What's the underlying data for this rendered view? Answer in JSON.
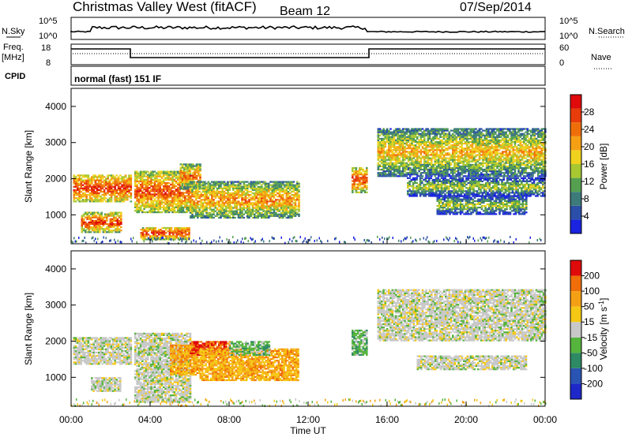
{
  "header": {
    "station": "Christmas Valley West (fitACF)",
    "beam": "Beam 12",
    "date": "07/Sep/2014"
  },
  "summary": {
    "nsky_label": "N.Sky",
    "nsky_ticks": [
      "10^5",
      "10^0"
    ],
    "nsearch_label": "N.Search",
    "nsearch_ticks": [
      "10^5",
      "10^0"
    ],
    "freq_label": "Freq.",
    "freq_unit": "[MHz]",
    "freq_ticks": [
      "18",
      "8"
    ],
    "nave_label": "Nave",
    "nave_ticks": [
      "60",
      "0"
    ],
    "cpid_label": "CPID",
    "cpid_value": "normal (fast) 151 IF"
  },
  "chart_data": [
    {
      "type": "heatmap",
      "name": "power-panel",
      "ylabel": "Slant Range [km]",
      "xlabel": "",
      "ylim": [
        200,
        4500
      ],
      "yticks": [
        "1000",
        "2000",
        "3000",
        "4000"
      ],
      "xlim_hours": [
        0,
        24
      ],
      "colorbar": {
        "label": "Power [dB]",
        "ticks": [
          "4",
          "8",
          "12",
          "16",
          "20",
          "24",
          "28"
        ],
        "colors": [
          "#1a23e0",
          "#2b4fa8",
          "#3d7a7a",
          "#55a050",
          "#a8c832",
          "#f0d21e",
          "#f5a014",
          "#f06e0a",
          "#e83c0a",
          "#e00a0a"
        ]
      },
      "features": [
        {
          "t0": 0.1,
          "t1": 3.0,
          "r0": 1350,
          "r1": 2100,
          "level": 0.8
        },
        {
          "t0": 0.5,
          "t1": 2.5,
          "r0": 500,
          "r1": 1050,
          "level": 0.75
        },
        {
          "t0": 3.2,
          "t1": 6.0,
          "r0": 1050,
          "r1": 2200,
          "level": 0.7
        },
        {
          "t0": 3.5,
          "t1": 6.0,
          "r0": 300,
          "r1": 650,
          "level": 0.8
        },
        {
          "t0": 5.5,
          "t1": 6.5,
          "r0": 1700,
          "r1": 2400,
          "level": 0.6
        },
        {
          "t0": 6.0,
          "t1": 11.5,
          "r0": 900,
          "r1": 1900,
          "level": 0.5
        },
        {
          "t0": 14.2,
          "t1": 15.0,
          "r0": 1600,
          "r1": 2300,
          "level": 0.75
        },
        {
          "t0": 15.5,
          "t1": 24.0,
          "r0": 2050,
          "r1": 3400,
          "level": 0.35
        },
        {
          "t0": 17.0,
          "t1": 24.0,
          "r0": 1500,
          "r1": 2000,
          "level": 0.1
        },
        {
          "t0": 18.5,
          "t1": 23.0,
          "r0": 1000,
          "r1": 1500,
          "level": 0.08
        }
      ]
    },
    {
      "type": "heatmap",
      "name": "velocity-panel",
      "ylabel": "Slant Range [km]",
      "xlabel": "Time UT",
      "ylim": [
        200,
        4500
      ],
      "yticks": [
        "1000",
        "2000",
        "3000",
        "4000"
      ],
      "xticks": [
        "00:00",
        "04:00",
        "08:00",
        "12:00",
        "16:00",
        "20:00",
        "00:00"
      ],
      "xlim_hours": [
        0,
        24
      ],
      "colorbar": {
        "label": "Velocity [m s",
        "label_sup": "-1",
        "label_end": "]",
        "ticks": [
          "200",
          "100",
          "50",
          "15",
          "-15",
          "-50",
          "-100",
          "-200"
        ],
        "colors": [
          "#1e28c8",
          "#2a54b4",
          "#2d8a64",
          "#55b43c",
          "#c8c8c8",
          "#f5c814",
          "#f5a014",
          "#f06e0a",
          "#e00a0a"
        ]
      },
      "features": [
        {
          "t0": 0.1,
          "t1": 3.0,
          "r0": 1350,
          "r1": 2100,
          "level": "gray"
        },
        {
          "t0": 1.0,
          "t1": 2.5,
          "r0": 600,
          "r1": 1000,
          "level": "gray"
        },
        {
          "t0": 3.2,
          "t1": 6.0,
          "r0": 300,
          "r1": 2200,
          "level": "gray"
        },
        {
          "t0": 5.0,
          "t1": 6.5,
          "r0": 1050,
          "r1": 1900,
          "level": "orange"
        },
        {
          "t0": 6.0,
          "t1": 8.0,
          "r0": 1600,
          "r1": 2000,
          "level": "red"
        },
        {
          "t0": 6.5,
          "t1": 11.5,
          "r0": 900,
          "r1": 1800,
          "level": "orange"
        },
        {
          "t0": 8.0,
          "t1": 10.0,
          "r0": 1600,
          "r1": 2000,
          "level": "green"
        },
        {
          "t0": 14.2,
          "t1": 15.0,
          "r0": 1600,
          "r1": 2300,
          "level": "green"
        },
        {
          "t0": 15.5,
          "t1": 24.0,
          "r0": 2000,
          "r1": 3400,
          "level": "gray"
        },
        {
          "t0": 17.5,
          "t1": 23.0,
          "r0": 1200,
          "r1": 1600,
          "level": "gray"
        }
      ]
    }
  ]
}
